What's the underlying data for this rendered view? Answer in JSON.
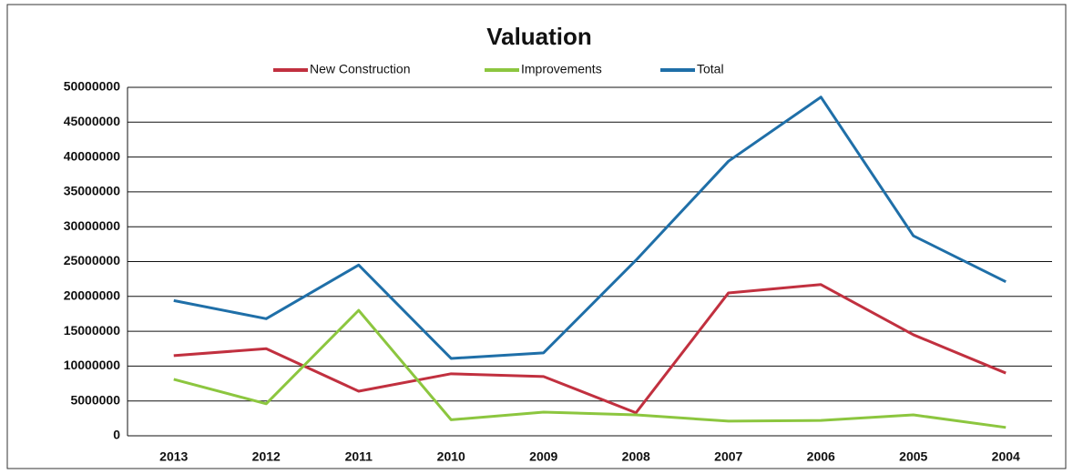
{
  "chart_data": {
    "type": "line",
    "title": "Valuation",
    "categories": [
      "2013",
      "2012",
      "2011",
      "2010",
      "2009",
      "2008",
      "2007",
      "2006",
      "2005",
      "2004"
    ],
    "series": [
      {
        "name": "New Construction",
        "color": "#c1303f",
        "values": [
          11500000,
          12500000,
          6400000,
          8900000,
          8500000,
          3300000,
          20500000,
          21700000,
          14500000,
          9000000
        ]
      },
      {
        "name": "Improvements",
        "color": "#8cc63f",
        "values": [
          8100000,
          4600000,
          18000000,
          2300000,
          3400000,
          3000000,
          2100000,
          2200000,
          3000000,
          1200000
        ]
      },
      {
        "name": "Total",
        "color": "#1f6fa8",
        "values": [
          19400000,
          16800000,
          24500000,
          11100000,
          11900000,
          25200000,
          39400000,
          48600000,
          28700000,
          22100000
        ]
      }
    ],
    "ylim": [
      0,
      50000000
    ],
    "yticks": [
      0,
      5000000,
      10000000,
      15000000,
      20000000,
      25000000,
      30000000,
      35000000,
      40000000,
      45000000,
      50000000
    ],
    "grid": true,
    "legend": "top"
  }
}
